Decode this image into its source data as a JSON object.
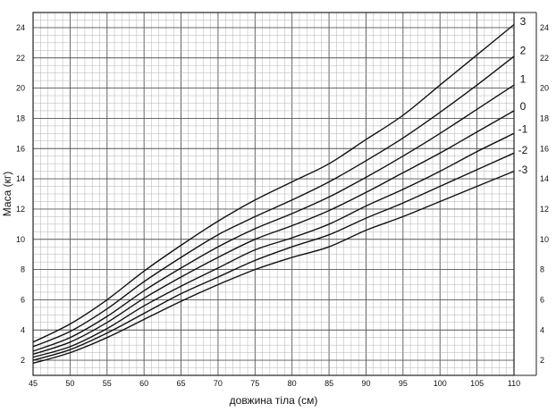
{
  "chart_data": {
    "type": "line",
    "xlabel": "довжина тіла (см)",
    "ylabel": "Маса (кг)",
    "xlim": [
      45,
      110
    ],
    "ylim": [
      1,
      25
    ],
    "x_ticks": [
      "45",
      "50",
      "55",
      "60",
      "65",
      "70",
      "75",
      "80",
      "85",
      "90",
      "95",
      "100",
      "105",
      "110"
    ],
    "y_ticks": [
      "2",
      "4",
      "6",
      "8",
      "10",
      "12",
      "14",
      "16",
      "18",
      "20",
      "22",
      "24"
    ],
    "grid": true,
    "x": [
      45,
      50,
      55,
      60,
      65,
      70,
      75,
      80,
      85,
      90,
      95,
      100,
      105,
      110
    ],
    "series": [
      {
        "name": "3",
        "label_y": 24.4,
        "values": [
          3.2,
          4.4,
          6.0,
          7.9,
          9.6,
          11.2,
          12.6,
          13.8,
          15.0,
          16.6,
          18.2,
          20.2,
          22.2,
          24.2
        ]
      },
      {
        "name": "2",
        "label_y": 22.5,
        "values": [
          2.9,
          3.9,
          5.4,
          7.2,
          8.8,
          10.3,
          11.5,
          12.6,
          13.8,
          15.2,
          16.7,
          18.4,
          20.2,
          22.1
        ]
      },
      {
        "name": "1",
        "label_y": 20.6,
        "values": [
          2.6,
          3.5,
          4.9,
          6.6,
          8.1,
          9.5,
          10.7,
          11.7,
          12.8,
          14.1,
          15.5,
          17.0,
          18.6,
          20.2
        ]
      },
      {
        "name": "0",
        "label_y": 18.8,
        "values": [
          2.4,
          3.2,
          4.5,
          6.1,
          7.5,
          8.8,
          10.0,
          10.9,
          11.9,
          13.1,
          14.4,
          15.7,
          17.1,
          18.5
        ]
      },
      {
        "name": "-1",
        "label_y": 17.3,
        "values": [
          2.2,
          2.9,
          4.1,
          5.6,
          6.9,
          8.1,
          9.3,
          10.1,
          11.0,
          12.2,
          13.3,
          14.5,
          15.8,
          17.0
        ]
      },
      {
        "name": "-2",
        "label_y": 15.9,
        "values": [
          2.0,
          2.7,
          3.8,
          5.1,
          6.4,
          7.5,
          8.6,
          9.5,
          10.3,
          11.4,
          12.4,
          13.5,
          14.6,
          15.7
        ]
      },
      {
        "name": "-3",
        "label_y": 14.6,
        "values": [
          1.8,
          2.5,
          3.5,
          4.7,
          5.9,
          7.0,
          8.0,
          8.8,
          9.5,
          10.6,
          11.5,
          12.5,
          13.5,
          14.5
        ]
      }
    ]
  }
}
